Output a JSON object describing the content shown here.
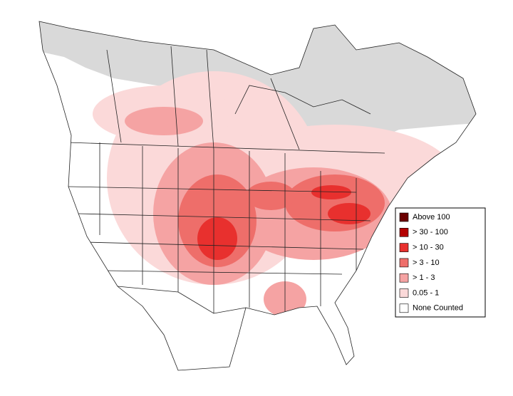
{
  "legend": {
    "items": [
      {
        "label": "Above 100",
        "color": "#6b0000"
      },
      {
        "label": "> 30 - 100",
        "color": "#b30000"
      },
      {
        "label": "> 10 - 30",
        "color": "#e8302e"
      },
      {
        "label": "> 3 - 10",
        "color": "#ee6e6a"
      },
      {
        "label": "> 1 - 3",
        "color": "#f5a3a3"
      },
      {
        "label": "0.05 - 1",
        "color": "#fbd9d9"
      },
      {
        "label": "None Counted",
        "color": "#ffffff"
      }
    ]
  },
  "map": {
    "no_data_color": "#d9d9d9"
  }
}
